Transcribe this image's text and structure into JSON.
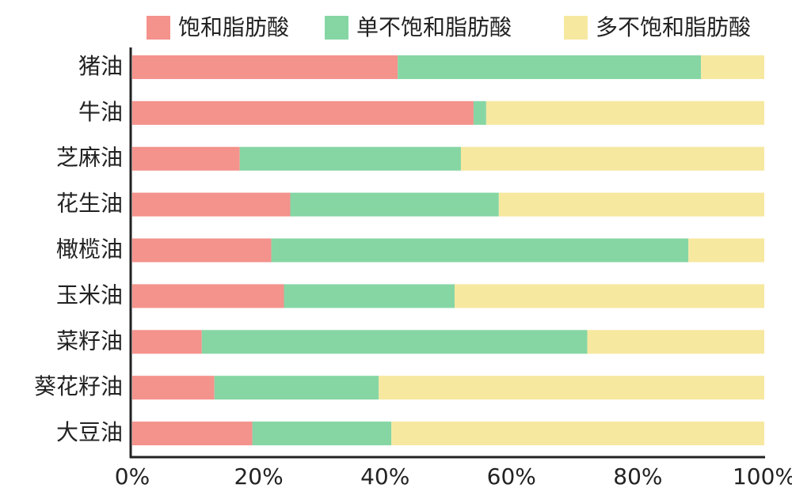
{
  "chart_data": {
    "type": "stacked-barh",
    "categories": [
      "猪油",
      "牛油",
      "芝麻油",
      "花生油",
      "橄榄油",
      "玉米油",
      "菜籽油",
      "葵花籽油",
      "大豆油"
    ],
    "series": [
      {
        "name": "饱和脂肪酸",
        "color": "#f4928c",
        "values": [
          42,
          54,
          17,
          25,
          22,
          24,
          11,
          13,
          19
        ]
      },
      {
        "name": "单不饱和脂肪酸",
        "color": "#86d6a4",
        "values": [
          48,
          2,
          35,
          33,
          66,
          27,
          61,
          26,
          22
        ]
      },
      {
        "name": "多不饱和脂肪酸",
        "color": "#f7e8a0",
        "values": [
          10,
          44,
          48,
          42,
          12,
          49,
          28,
          61,
          59
        ]
      }
    ],
    "xlim": [
      0,
      100
    ],
    "xticks": [
      {
        "value": 0,
        "label": "0%"
      },
      {
        "value": 20,
        "label": "20%"
      },
      {
        "value": 40,
        "label": "40%"
      },
      {
        "value": 60,
        "label": "60%"
      },
      {
        "value": 80,
        "label": "80%"
      },
      {
        "value": 100,
        "label": "100%"
      }
    ],
    "legend": "top"
  }
}
